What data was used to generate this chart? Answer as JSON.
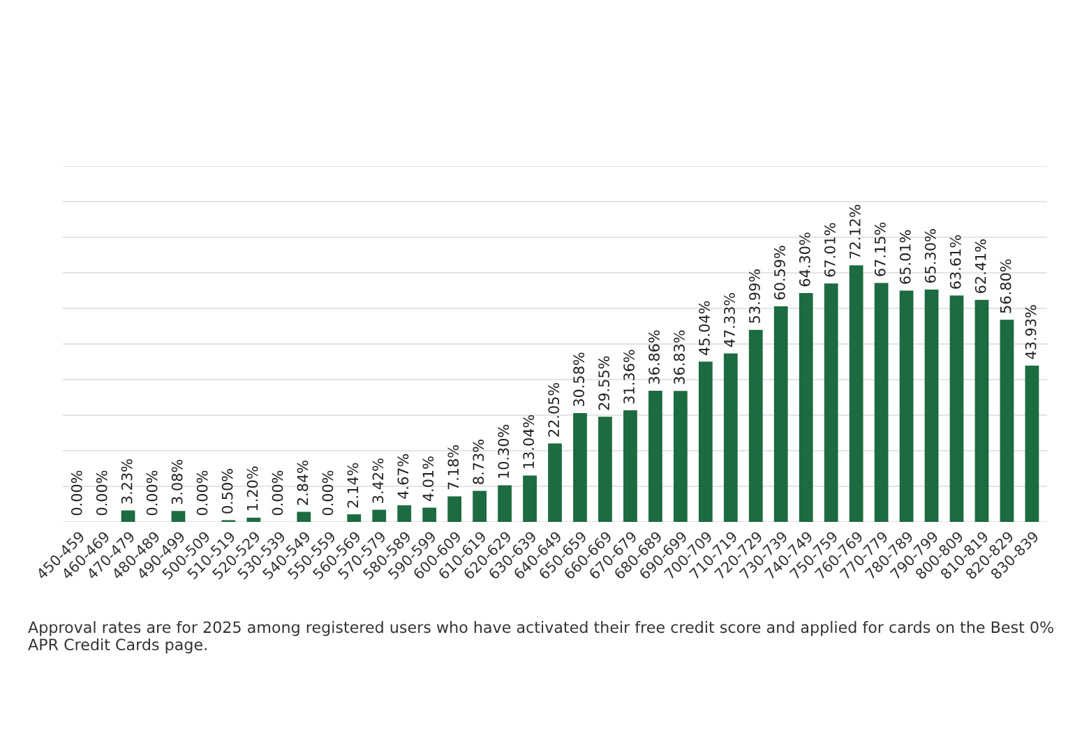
{
  "chart_data": {
    "type": "bar",
    "categories": [
      "450-459",
      "460-469",
      "470-479",
      "480-489",
      "490-499",
      "500-509",
      "510-519",
      "520-529",
      "530-539",
      "540-549",
      "550-559",
      "560-569",
      "570-579",
      "580-589",
      "590-599",
      "600-609",
      "610-619",
      "620-629",
      "630-639",
      "640-649",
      "650-659",
      "660-669",
      "670-679",
      "680-689",
      "690-699",
      "700-709",
      "710-719",
      "720-729",
      "730-739",
      "740-749",
      "750-759",
      "760-769",
      "770-779",
      "780-789",
      "790-799",
      "800-809",
      "810-819",
      "820-829",
      "830-839"
    ],
    "values": [
      0,
      0,
      3.23,
      0,
      3.08,
      0,
      0.5,
      1.2,
      0,
      2.84,
      0,
      2.14,
      3.42,
      4.67,
      4.01,
      7.18,
      8.73,
      10.3,
      13.04,
      22.05,
      30.58,
      29.55,
      31.36,
      36.86,
      36.83,
      45.04,
      47.33,
      53.99,
      60.59,
      64.3,
      67.01,
      72.12,
      67.15,
      65.01,
      65.3,
      63.61,
      62.41,
      56.8,
      43.93
    ],
    "value_labels": [
      "0.00%",
      "0.00%",
      "3.23%",
      "0.00%",
      "3.08%",
      "0.00%",
      "0.50%",
      "1.20%",
      "0.00%",
      "2.84%",
      "0.00%",
      "2.14%",
      "3.42%",
      "4.67%",
      "4.01%",
      "7.18%",
      "8.73%",
      "10.30%",
      "13.04%",
      "22.05%",
      "30.58%",
      "29.55%",
      "31.36%",
      "36.86%",
      "36.83%",
      "45.04%",
      "47.33%",
      "53.99%",
      "60.59%",
      "64.30%",
      "67.01%",
      "72.12%",
      "67.15%",
      "65.01%",
      "65.30%",
      "63.61%",
      "62.41%",
      "56.80%",
      "43.93%"
    ],
    "color": "#1d6b40",
    "ylim": [
      0,
      100
    ],
    "yticks": [
      {
        "value": 0,
        "label": null
      },
      {
        "value": 10,
        "label": null
      },
      {
        "value": 20,
        "label": null
      },
      {
        "value": 30,
        "label": null
      },
      {
        "value": 40,
        "label": null
      },
      {
        "value": 50,
        "label": null
      },
      {
        "value": 60,
        "label": null
      },
      {
        "value": 70,
        "label": null
      },
      {
        "value": 80,
        "label": null
      },
      {
        "value": 90,
        "label": null
      },
      {
        "value": 100,
        "label": null
      }
    ],
    "tick_labels": "x",
    "grid": "y",
    "annotations": [
      "Approval rates are for 2025 among registered users who have activated their free credit score and applied for cards on the Best 0% APR Credit Cards page."
    ]
  }
}
